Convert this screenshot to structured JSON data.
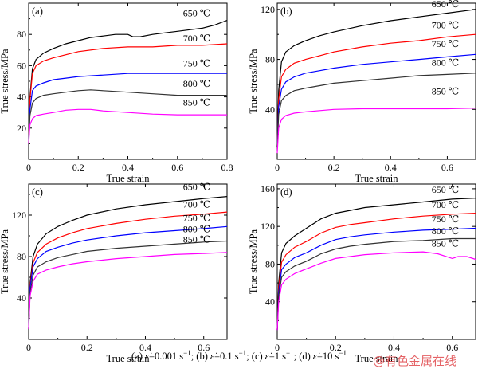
{
  "caption": {
    "a": "(a)",
    "a_rate": "ε̇",
    "a_val": "=0.001 s",
    "a_exp": "−1",
    "sep1": ";",
    "b": "(b)",
    "b_rate": "ε̇",
    "b_val": "=0.1 s",
    "b_exp": "−1",
    "sep2": ";",
    "c": "(c)",
    "c_rate": "ε̇",
    "c_val": "=1 s",
    "c_exp": "−1",
    "sep3": ";",
    "d": "(d)",
    "d_rate": "ε̇",
    "d_val": "=10 s",
    "d_exp": "−1"
  },
  "watermark": "@有色金属在线",
  "chart_data": [
    {
      "type": "line",
      "panel_label": "(a)",
      "xlabel": "True strain",
      "ylabel": "True stress/MPa",
      "xlim": [
        0,
        0.8
      ],
      "ylim": [
        0,
        100
      ],
      "xticks": [
        0,
        0.2,
        0.4,
        0.6,
        0.8
      ],
      "xtick_labels": [
        "0",
        "0.2",
        "0.4",
        "0.6",
        "0.8"
      ],
      "yticks": [
        20,
        40,
        60,
        80
      ],
      "ytick_labels": [
        "20",
        "40",
        "60",
        "80"
      ],
      "series": [
        {
          "name": "650 ℃",
          "color": "#000000",
          "x": [
            0,
            0.005,
            0.015,
            0.03,
            0.06,
            0.1,
            0.15,
            0.2,
            0.25,
            0.3,
            0.35,
            0.4,
            0.42,
            0.45,
            0.5,
            0.55,
            0.6,
            0.65,
            0.7,
            0.75,
            0.8
          ],
          "y": [
            10,
            40,
            58,
            64,
            68,
            71,
            74,
            76,
            78,
            79,
            80,
            80,
            78.5,
            78.5,
            80,
            81,
            82,
            83,
            84,
            86,
            89
          ]
        },
        {
          "name": "700 ℃",
          "color": "#ff0000",
          "x": [
            0,
            0.005,
            0.015,
            0.03,
            0.06,
            0.1,
            0.15,
            0.2,
            0.3,
            0.4,
            0.5,
            0.6,
            0.7,
            0.8
          ],
          "y": [
            10,
            38,
            55,
            60,
            63,
            65,
            67,
            69,
            71,
            72,
            72,
            73,
            73,
            74
          ]
        },
        {
          "name": "750 ℃",
          "color": "#0000ff",
          "x": [
            0,
            0.005,
            0.015,
            0.03,
            0.06,
            0.1,
            0.15,
            0.2,
            0.3,
            0.4,
            0.5,
            0.6,
            0.7,
            0.8
          ],
          "y": [
            10,
            32,
            44,
            47,
            49,
            51,
            52,
            53,
            54,
            55,
            55,
            55,
            55,
            55
          ]
        },
        {
          "name": "800 ℃",
          "color": "#333333",
          "x": [
            0,
            0.005,
            0.015,
            0.03,
            0.06,
            0.1,
            0.15,
            0.2,
            0.25,
            0.3,
            0.4,
            0.5,
            0.6,
            0.7,
            0.8
          ],
          "y": [
            10,
            28,
            36,
            39,
            41,
            42,
            43,
            44,
            44.5,
            44,
            43,
            42,
            41,
            41,
            41
          ]
        },
        {
          "name": "850 ℃",
          "color": "#ff00ff",
          "x": [
            0,
            0.005,
            0.015,
            0.03,
            0.06,
            0.1,
            0.15,
            0.2,
            0.25,
            0.3,
            0.4,
            0.5,
            0.6,
            0.7,
            0.8
          ],
          "y": [
            10,
            22,
            26,
            28,
            29,
            30,
            31.5,
            32,
            32,
            31,
            30,
            29,
            28.5,
            28.5,
            28.5
          ]
        }
      ]
    },
    {
      "type": "line",
      "panel_label": "(b)",
      "xlabel": "True strain",
      "ylabel": "True stress/MPa",
      "xlim": [
        0,
        0.7
      ],
      "ylim": [
        0,
        125
      ],
      "xticks": [
        0,
        0.2,
        0.4,
        0.6
      ],
      "xtick_labels": [
        "0",
        "0.2",
        "0.4",
        "0.6"
      ],
      "yticks": [
        40,
        80,
        120
      ],
      "ytick_labels": [
        "40",
        "80",
        "120"
      ],
      "series": [
        {
          "name": "650 ℃",
          "color": "#000000",
          "x": [
            0,
            0.005,
            0.015,
            0.03,
            0.06,
            0.1,
            0.15,
            0.2,
            0.3,
            0.4,
            0.5,
            0.6,
            0.7
          ],
          "y": [
            10,
            55,
            78,
            86,
            91,
            95,
            99,
            102,
            107,
            111,
            114,
            117,
            120
          ]
        },
        {
          "name": "700 ℃",
          "color": "#ff0000",
          "x": [
            0,
            0.005,
            0.015,
            0.03,
            0.06,
            0.1,
            0.15,
            0.2,
            0.3,
            0.4,
            0.5,
            0.6,
            0.7
          ],
          "y": [
            10,
            48,
            66,
            72,
            77,
            80,
            83,
            86,
            90,
            93,
            95,
            98,
            100
          ]
        },
        {
          "name": "750 ℃",
          "color": "#0000ff",
          "x": [
            0,
            0.005,
            0.015,
            0.03,
            0.06,
            0.1,
            0.15,
            0.2,
            0.3,
            0.4,
            0.5,
            0.6,
            0.7
          ],
          "y": [
            10,
            42,
            56,
            62,
            66,
            69,
            71,
            73,
            76,
            78,
            80,
            82,
            84
          ]
        },
        {
          "name": "800 ℃",
          "color": "#333333",
          "x": [
            0,
            0.005,
            0.015,
            0.03,
            0.06,
            0.1,
            0.15,
            0.2,
            0.3,
            0.4,
            0.5,
            0.6,
            0.7
          ],
          "y": [
            10,
            36,
            47,
            51,
            55,
            57,
            59,
            61,
            63,
            65,
            67,
            68,
            69
          ]
        },
        {
          "name": "850 ℃",
          "color": "#ff00ff",
          "x": [
            0,
            0.005,
            0.015,
            0.03,
            0.06,
            0.1,
            0.15,
            0.2,
            0.3,
            0.4,
            0.5,
            0.6,
            0.7
          ],
          "y": [
            5,
            25,
            32,
            35,
            37,
            38,
            39,
            40,
            40.5,
            40.5,
            40.5,
            40.5,
            41
          ]
        }
      ]
    },
    {
      "type": "line",
      "panel_label": "(c)",
      "xlabel": "True strain",
      "ylabel": "True stress/MPa",
      "xlim": [
        0,
        0.68
      ],
      "ylim": [
        0,
        150
      ],
      "xticks": [
        0,
        0.2,
        0.4,
        0.6
      ],
      "xtick_labels": [
        "0",
        "0.2",
        "0.4",
        "0.6"
      ],
      "yticks": [
        40,
        80,
        120
      ],
      "ytick_labels": [
        "40",
        "80",
        "120"
      ],
      "series": [
        {
          "name": "650 ℃",
          "color": "#000000",
          "x": [
            0,
            0.005,
            0.015,
            0.03,
            0.06,
            0.1,
            0.15,
            0.2,
            0.3,
            0.4,
            0.5,
            0.6,
            0.68
          ],
          "y": [
            10,
            55,
            80,
            92,
            102,
            109,
            115,
            120,
            126,
            130,
            133,
            136,
            138
          ]
        },
        {
          "name": "700 ℃",
          "color": "#ff0000",
          "x": [
            0,
            0.005,
            0.015,
            0.03,
            0.06,
            0.1,
            0.15,
            0.2,
            0.3,
            0.4,
            0.5,
            0.6,
            0.68
          ],
          "y": [
            10,
            52,
            74,
            84,
            92,
            98,
            103,
            107,
            112,
            116,
            119,
            121,
            123
          ]
        },
        {
          "name": "750 ℃",
          "color": "#0000ff",
          "x": [
            0,
            0.005,
            0.015,
            0.03,
            0.06,
            0.1,
            0.15,
            0.2,
            0.3,
            0.4,
            0.5,
            0.6,
            0.68
          ],
          "y": [
            10,
            50,
            70,
            78,
            85,
            89,
            93,
            96,
            100,
            103,
            105,
            107,
            109
          ]
        },
        {
          "name": "800 ℃",
          "color": "#333333",
          "x": [
            0,
            0.005,
            0.015,
            0.03,
            0.06,
            0.1,
            0.15,
            0.2,
            0.3,
            0.4,
            0.5,
            0.6,
            0.68
          ],
          "y": [
            10,
            45,
            62,
            70,
            75,
            79,
            82,
            85,
            88,
            90,
            92,
            94,
            95
          ]
        },
        {
          "name": "850 ℃",
          "color": "#ff00ff",
          "x": [
            0,
            0.005,
            0.015,
            0.03,
            0.06,
            0.1,
            0.15,
            0.2,
            0.3,
            0.4,
            0.5,
            0.6,
            0.68
          ],
          "y": [
            10,
            42,
            56,
            63,
            67,
            70,
            73,
            75,
            78,
            80,
            82,
            83,
            84
          ]
        }
      ]
    },
    {
      "type": "line",
      "panel_label": "(d)",
      "xlabel": "True strain",
      "ylabel": "True stress/MPa",
      "xlim": [
        0,
        0.68
      ],
      "ylim": [
        0,
        165
      ],
      "xticks": [
        0,
        0.2,
        0.4,
        0.6
      ],
      "xtick_labels": [
        "0",
        "0.2",
        "0.4",
        "0.6"
      ],
      "yticks": [
        40,
        80,
        120,
        160
      ],
      "ytick_labels": [
        "40",
        "80",
        "120",
        "160"
      ],
      "series": [
        {
          "name": "650 ℃",
          "color": "#000000",
          "x": [
            0,
            0.005,
            0.015,
            0.03,
            0.06,
            0.1,
            0.15,
            0.2,
            0.25,
            0.3,
            0.4,
            0.5,
            0.6,
            0.68
          ],
          "y": [
            10,
            60,
            92,
            102,
            110,
            118,
            128,
            134,
            137,
            140,
            143,
            146,
            149,
            150
          ]
        },
        {
          "name": "700 ℃",
          "color": "#ff0000",
          "x": [
            0,
            0.005,
            0.015,
            0.03,
            0.06,
            0.1,
            0.15,
            0.2,
            0.25,
            0.3,
            0.4,
            0.5,
            0.6,
            0.68
          ],
          "y": [
            10,
            55,
            82,
            90,
            98,
            104,
            113,
            119,
            122,
            124,
            128,
            131,
            133,
            134
          ]
        },
        {
          "name": "750 ℃",
          "color": "#0000ff",
          "x": [
            0,
            0.005,
            0.015,
            0.03,
            0.06,
            0.1,
            0.15,
            0.2,
            0.25,
            0.3,
            0.4,
            0.5,
            0.6,
            0.68
          ],
          "y": [
            10,
            50,
            74,
            80,
            87,
            92,
            100,
            106,
            109,
            111,
            114,
            116,
            117,
            118
          ]
        },
        {
          "name": "800 ℃",
          "color": "#333333",
          "x": [
            0,
            0.005,
            0.015,
            0.03,
            0.06,
            0.1,
            0.15,
            0.2,
            0.25,
            0.3,
            0.4,
            0.5,
            0.6,
            0.68
          ],
          "y": [
            10,
            46,
            66,
            72,
            78,
            83,
            91,
            96,
            99,
            101,
            104,
            105,
            107,
            107
          ]
        },
        {
          "name": "850 ℃",
          "color": "#ff00ff",
          "x": [
            0,
            0.005,
            0.015,
            0.03,
            0.06,
            0.1,
            0.15,
            0.2,
            0.25,
            0.3,
            0.4,
            0.5,
            0.55,
            0.6,
            0.62,
            0.65,
            0.68
          ],
          "y": [
            10,
            40,
            58,
            64,
            70,
            75,
            81,
            86,
            88,
            90,
            92,
            93,
            91,
            86,
            88,
            88,
            85
          ]
        }
      ]
    }
  ]
}
